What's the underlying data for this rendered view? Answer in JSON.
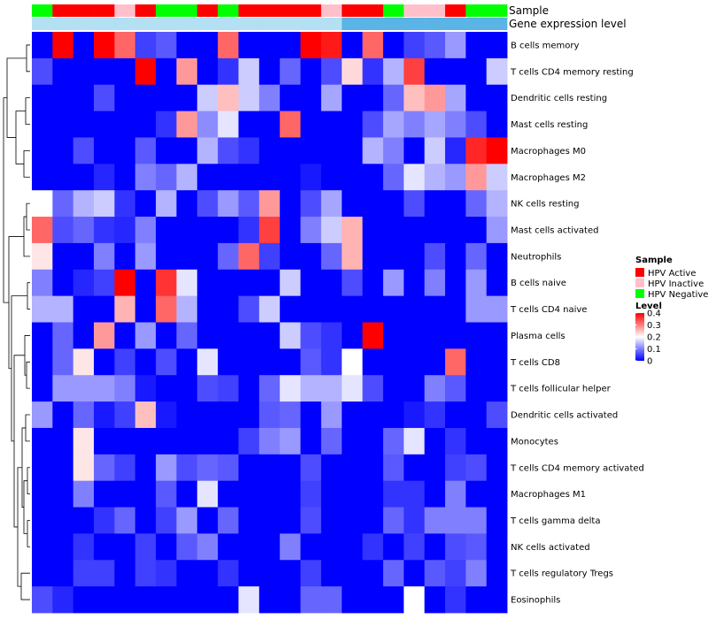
{
  "chart_data": {
    "type": "heatmap",
    "title": "",
    "annotation_tracks": [
      {
        "label": "Sample"
      },
      {
        "label": "Gene expression level"
      }
    ],
    "sample_groups": [
      "Negative",
      "Active",
      "Active",
      "Active",
      "Inactive",
      "Active",
      "Negative",
      "Negative",
      "Active",
      "Negative",
      "Active",
      "Active",
      "Active",
      "Active",
      "Inactive",
      "Active",
      "Active",
      "Negative",
      "Inactive",
      "Inactive",
      "Active",
      "Negative",
      "Negative"
    ],
    "expression_track": [
      0.05,
      0.05,
      0.05,
      0.05,
      0.05,
      0.05,
      0.05,
      0.05,
      0.05,
      0.05,
      0.05,
      0.05,
      0.05,
      0.05,
      0.05,
      0.1,
      0.1,
      0.1,
      0.1,
      0.1,
      0.1,
      0.1,
      0.1
    ],
    "rows": [
      "B cells memory",
      "T cells CD4 memory resting",
      "Dendritic cells resting",
      "Mast cells resting",
      "Macrophages M0",
      "Macrophages M2",
      "NK cells resting",
      "Mast cells activated",
      "Neutrophils",
      "B cells naive",
      "T cells CD4 naive",
      "Plasma cells",
      "T cells CD8",
      "T cells follicular helper",
      "Dendritic cells activated",
      "Monocytes",
      "T cells CD4 memory activated",
      "Macrophages M1",
      "T cells gamma delta",
      "NK cells activated",
      "T cells regulatory  Tregs",
      "Eosinophils"
    ],
    "values": [
      [
        0.0,
        0.4,
        0.0,
        0.4,
        0.32,
        0.05,
        0.07,
        0.0,
        0.0,
        0.32,
        0.0,
        0.0,
        0.0,
        0.4,
        0.38,
        0.0,
        0.32,
        0.0,
        0.05,
        0.07,
        0.12,
        0.0,
        0.0
      ],
      [
        0.06,
        0.0,
        0.0,
        0.0,
        0.0,
        0.4,
        0.0,
        0.28,
        0.0,
        0.04,
        0.16,
        0.0,
        0.08,
        0.0,
        0.06,
        0.23,
        0.04,
        0.14,
        0.35,
        0.0,
        0.0,
        0.0,
        0.16
      ],
      [
        0.0,
        0.0,
        0.0,
        0.06,
        0.0,
        0.0,
        0.0,
        0.0,
        0.16,
        0.25,
        0.16,
        0.1,
        0.0,
        0.0,
        0.13,
        0.0,
        0.0,
        0.08,
        0.25,
        0.28,
        0.13,
        0.0,
        0.0
      ],
      [
        0.0,
        0.0,
        0.0,
        0.0,
        0.0,
        0.0,
        0.04,
        0.28,
        0.11,
        0.18,
        0.0,
        0.0,
        0.32,
        0.0,
        0.0,
        0.0,
        0.06,
        0.13,
        0.1,
        0.13,
        0.1,
        0.06,
        0.0
      ],
      [
        0.0,
        0.0,
        0.06,
        0.0,
        0.0,
        0.07,
        0.0,
        0.0,
        0.14,
        0.06,
        0.04,
        0.0,
        0.0,
        0.0,
        0.0,
        0.0,
        0.14,
        0.1,
        0.0,
        0.16,
        0.03,
        0.37,
        0.4
      ],
      [
        0.0,
        0.0,
        0.0,
        0.03,
        0.0,
        0.1,
        0.08,
        0.14,
        0.0,
        0.0,
        0.0,
        0.0,
        0.0,
        0.02,
        0.0,
        0.0,
        0.0,
        0.08,
        0.18,
        0.14,
        0.12,
        0.28,
        0.16
      ],
      [
        0.2,
        0.08,
        0.14,
        0.16,
        0.04,
        0.0,
        0.14,
        0.0,
        0.06,
        0.12,
        0.07,
        0.28,
        0.0,
        0.06,
        0.13,
        0.0,
        0.0,
        0.0,
        0.06,
        0.0,
        0.0,
        0.08,
        0.14
      ],
      [
        0.32,
        0.06,
        0.08,
        0.04,
        0.03,
        0.1,
        0.0,
        0.0,
        0.0,
        0.0,
        0.04,
        0.35,
        0.0,
        0.1,
        0.16,
        0.26,
        0.0,
        0.0,
        0.0,
        0.0,
        0.0,
        0.0,
        0.12
      ],
      [
        0.22,
        0.0,
        0.0,
        0.1,
        0.0,
        0.12,
        0.0,
        0.0,
        0.0,
        0.08,
        0.32,
        0.05,
        0.0,
        0.0,
        0.08,
        0.26,
        0.0,
        0.0,
        0.0,
        0.06,
        0.0,
        0.08,
        0.0
      ],
      [
        0.1,
        0.0,
        0.03,
        0.05,
        0.4,
        0.0,
        0.36,
        0.18,
        0.0,
        0.0,
        0.0,
        0.0,
        0.16,
        0.0,
        0.0,
        0.06,
        0.0,
        0.12,
        0.0,
        0.1,
        0.0,
        0.12,
        0.0
      ],
      [
        0.14,
        0.14,
        0.0,
        0.0,
        0.26,
        0.0,
        0.32,
        0.14,
        0.0,
        0.0,
        0.06,
        0.16,
        0.0,
        0.0,
        0.0,
        0.0,
        0.0,
        0.0,
        0.0,
        0.0,
        0.0,
        0.12,
        0.12
      ],
      [
        0.0,
        0.08,
        0.0,
        0.28,
        0.0,
        0.12,
        0.0,
        0.08,
        0.0,
        0.0,
        0.0,
        0.0,
        0.16,
        0.06,
        0.04,
        0.0,
        0.4,
        0.0,
        0.0,
        0.0,
        0.0,
        0.0,
        0.0
      ],
      [
        0.0,
        0.08,
        0.22,
        0.0,
        0.05,
        0.0,
        0.06,
        0.0,
        0.18,
        0.0,
        0.0,
        0.0,
        0.0,
        0.07,
        0.04,
        0.2,
        0.0,
        0.0,
        0.0,
        0.0,
        0.32,
        0.0,
        0.0
      ],
      [
        0.0,
        0.12,
        0.12,
        0.12,
        0.1,
        0.02,
        0.0,
        0.0,
        0.06,
        0.05,
        0.0,
        0.08,
        0.18,
        0.14,
        0.14,
        0.18,
        0.06,
        0.0,
        0.0,
        0.1,
        0.07,
        0.0,
        0.0
      ],
      [
        0.12,
        0.0,
        0.08,
        0.02,
        0.05,
        0.25,
        0.02,
        0.0,
        0.0,
        0.0,
        0.0,
        0.07,
        0.08,
        0.0,
        0.12,
        0.0,
        0.0,
        0.0,
        0.02,
        0.04,
        0.0,
        0.0,
        0.06
      ],
      [
        0.0,
        0.0,
        0.22,
        0.0,
        0.0,
        0.0,
        0.0,
        0.0,
        0.0,
        0.0,
        0.05,
        0.1,
        0.12,
        0.0,
        0.08,
        0.0,
        0.0,
        0.08,
        0.18,
        0.0,
        0.04,
        0.0,
        0.0
      ],
      [
        0.0,
        0.0,
        0.22,
        0.08,
        0.05,
        0.0,
        0.12,
        0.06,
        0.08,
        0.07,
        0.0,
        0.0,
        0.0,
        0.06,
        0.0,
        0.0,
        0.0,
        0.07,
        0.0,
        0.0,
        0.05,
        0.06,
        0.0
      ],
      [
        0.0,
        0.0,
        0.1,
        0.0,
        0.0,
        0.0,
        0.07,
        0.0,
        0.18,
        0.0,
        0.0,
        0.0,
        0.0,
        0.05,
        0.0,
        0.0,
        0.0,
        0.04,
        0.04,
        0.0,
        0.1,
        0.0,
        0.0
      ],
      [
        0.0,
        0.0,
        0.0,
        0.04,
        0.08,
        0.0,
        0.05,
        0.12,
        0.0,
        0.08,
        0.0,
        0.0,
        0.0,
        0.06,
        0.0,
        0.0,
        0.0,
        0.08,
        0.04,
        0.1,
        0.1,
        0.1,
        0.0
      ],
      [
        0.0,
        0.0,
        0.04,
        0.0,
        0.0,
        0.05,
        0.0,
        0.07,
        0.1,
        0.0,
        0.0,
        0.0,
        0.1,
        0.0,
        0.0,
        0.0,
        0.04,
        0.0,
        0.05,
        0.0,
        0.06,
        0.07,
        0.0
      ],
      [
        0.0,
        0.0,
        0.05,
        0.05,
        0.0,
        0.05,
        0.04,
        0.0,
        0.0,
        0.04,
        0.0,
        0.0,
        0.0,
        0.05,
        0.0,
        0.0,
        0.0,
        0.08,
        0.0,
        0.07,
        0.05,
        0.1,
        0.0
      ],
      [
        0.06,
        0.03,
        0.0,
        0.0,
        0.0,
        0.0,
        0.0,
        0.0,
        0.0,
        0.0,
        0.18,
        0.0,
        0.0,
        0.08,
        0.08,
        0.0,
        0.0,
        0.0,
        0.2,
        0.0,
        0.04,
        0.0,
        0.0
      ]
    ],
    "color_scale": {
      "min": 0,
      "mid": 0.2,
      "max": 0.4,
      "low": "#0000ff",
      "mid_color": "#ffffff",
      "high": "#ff0000"
    },
    "legend": {
      "sample_title": "Sample",
      "sample_items": [
        {
          "label": "HPV Active",
          "key": "Active",
          "color": "#ff0000"
        },
        {
          "label": "HPV Inactive",
          "key": "Inactive",
          "color": "#ffc0cb"
        },
        {
          "label": "HPV Negative",
          "key": "Negative",
          "color": "#00ff00"
        }
      ],
      "level_title": "Level",
      "level_ticks": [
        "0.4",
        "0.3",
        "0.2",
        "0.1",
        "0"
      ],
      "level_tick_values": [
        0.4,
        0.3,
        0.2,
        0.1,
        0
      ]
    }
  },
  "colors": {
    "expression_low": "#b3e0f2",
    "expression_high": "#5ab4e5",
    "dendrogram": "#000000"
  }
}
